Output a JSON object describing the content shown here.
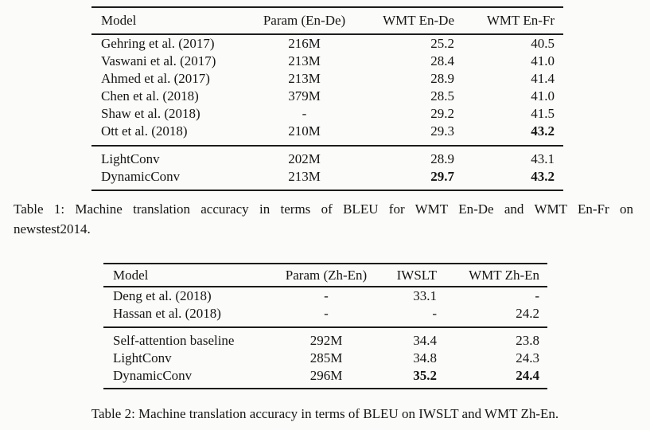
{
  "page": {
    "background": "#fbfbf9",
    "text_color": "#151515",
    "rule_color": "#1c1c1c"
  },
  "tables": [
    {
      "name": "Table 1",
      "columns": [
        {
          "label": "Model",
          "align": "left"
        },
        {
          "label": "Param (En-De)",
          "align": "center"
        },
        {
          "label": "WMT En-De",
          "align": "right"
        },
        {
          "label": "WMT En-Fr",
          "align": "right"
        }
      ],
      "groups": [
        {
          "rows": [
            {
              "cells": [
                "Gehring et al. (2017)",
                "216M",
                "25.2",
                "40.5"
              ],
              "bold_cells": []
            },
            {
              "cells": [
                "Vaswani et al. (2017)",
                "213M",
                "28.4",
                "41.0"
              ],
              "bold_cells": []
            },
            {
              "cells": [
                "Ahmed et al. (2017)",
                "213M",
                "28.9",
                "41.4"
              ],
              "bold_cells": []
            },
            {
              "cells": [
                "Chen et al. (2018)",
                "379M",
                "28.5",
                "41.0"
              ],
              "bold_cells": []
            },
            {
              "cells": [
                "Shaw et al. (2018)",
                "-",
                "29.2",
                "41.5"
              ],
              "bold_cells": []
            },
            {
              "cells": [
                "Ott et al. (2018)",
                "210M",
                "29.3",
                "43.2"
              ],
              "bold_cells": [
                3
              ]
            }
          ]
        },
        {
          "rows": [
            {
              "cells": [
                "LightConv",
                "202M",
                "28.9",
                "43.1"
              ],
              "bold_cells": []
            },
            {
              "cells": [
                "DynamicConv",
                "213M",
                "29.7",
                "43.2"
              ],
              "bold_cells": [
                2,
                3
              ]
            }
          ]
        }
      ],
      "caption_lines": [
        "Table 1: Machine translation accuracy in terms of BLEU for WMT En-De and WMT En-Fr on",
        "newstest2014."
      ]
    },
    {
      "name": "Table 2",
      "columns": [
        {
          "label": "Model",
          "align": "left"
        },
        {
          "label": "Param (Zh-En)",
          "align": "center"
        },
        {
          "label": "IWSLT",
          "align": "right"
        },
        {
          "label": "WMT Zh-En",
          "align": "right"
        }
      ],
      "groups": [
        {
          "rows": [
            {
              "cells": [
                "Deng et al. (2018)",
                "-",
                "33.1",
                "-"
              ],
              "bold_cells": []
            },
            {
              "cells": [
                "Hassan et al. (2018)",
                "-",
                "-",
                "24.2"
              ],
              "bold_cells": []
            }
          ]
        },
        {
          "rows": [
            {
              "cells": [
                "Self-attention baseline",
                "292M",
                "34.4",
                "23.8"
              ],
              "bold_cells": []
            },
            {
              "cells": [
                "LightConv",
                "285M",
                "34.8",
                "24.3"
              ],
              "bold_cells": []
            },
            {
              "cells": [
                "DynamicConv",
                "296M",
                "35.2",
                "24.4"
              ],
              "bold_cells": [
                2,
                3
              ]
            }
          ]
        }
      ],
      "caption_lines": [
        "Table 2: Machine translation accuracy in terms of BLEU on IWSLT and WMT Zh-En."
      ]
    }
  ]
}
